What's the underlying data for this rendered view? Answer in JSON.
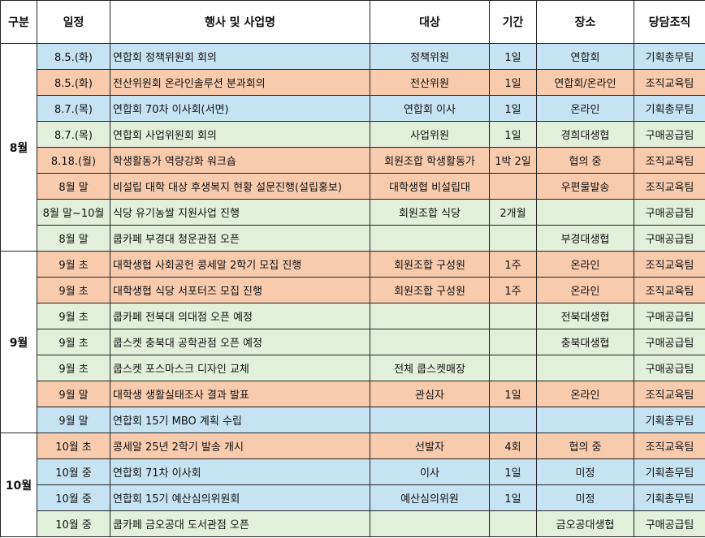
{
  "table": {
    "header": [
      "구분",
      "일정",
      "행사 및 사업명",
      "대상",
      "기간",
      "장소",
      "당담조직"
    ],
    "groups": [
      {
        "label": "8월",
        "rows": [
          {
            "color": "#c6e3f4",
            "cells": [
              "8.5.(화)",
              "연합회 정책위원회 회의",
              "정책위원",
              "1일",
              "연합회",
              "기획총무팀"
            ]
          },
          {
            "color": "#f8cbad",
            "cells": [
              "8.5.(화)",
              "전산위원회 온라인솔루션 분과회의",
              "전산위원",
              "1일",
              "연합회/온라인",
              "조직교육팀"
            ]
          },
          {
            "color": "#c6e3f4",
            "cells": [
              "8.7.(목)",
              "연합회 70차 이사회(서면)",
              "연합회 이사",
              "1일",
              "온라인",
              "기획총무팀"
            ]
          },
          {
            "color": "#e2efda",
            "cells": [
              "8.7.(목)",
              "연합회 사업위원회 회의",
              "사업위원",
              "1일",
              "경희대생협",
              "구매공급팀"
            ]
          },
          {
            "color": "#f8cbad",
            "cells": [
              "8.18.(월)",
              "학생활동가 역량강화 워크숍",
              "회원조합 학생활동가",
              "1박 2일",
              "협의 중",
              "조직교육팀"
            ]
          },
          {
            "color": "#f8cbad",
            "cells": [
              "8월 말",
              "비설립 대학 대상 후생복지 현황 설문진행(설립홍보)",
              "대학생협 비설립대",
              null,
              "우편물발송",
              "조직교육팀"
            ]
          },
          {
            "color": "#e2efda",
            "cells": [
              "8월 말~10월",
              "식당 유기농쌀 지원사업 진행",
              "회원조합 식당",
              "2개월",
              null,
              "구매공급팀"
            ]
          },
          {
            "color": "#e2efda",
            "cells": [
              "8월 말",
              "쿱카페 부경대 청운관점 오픈",
              null,
              null,
              "부경대생협",
              "구매공급팀"
            ]
          }
        ]
      },
      {
        "label": "9월",
        "rows": [
          {
            "color": "#f8cbad",
            "cells": [
              "9월 초",
              "대학생협 사회공헌 콩세알 2학기 모집 진행",
              "회원조합 구성원",
              "1주",
              "온라인",
              "조직교육팀"
            ]
          },
          {
            "color": "#f8cbad",
            "cells": [
              "9월 초",
              "대학생협 식당 서포터즈 모집 진행",
              "회원조합 구성원",
              "1주",
              "온라인",
              "조직교육팀"
            ]
          },
          {
            "color": "#e2efda",
            "cells": [
              "9월 초",
              "쿱카페 전북대 의대점 오픈 예정",
              null,
              null,
              "전북대생협",
              "구매공급팀"
            ]
          },
          {
            "color": "#e2efda",
            "cells": [
              "9월 초",
              "쿱스켓 충북대 공학관점 오픈 예정",
              null,
              null,
              "충북대생협",
              "구매공급팀"
            ]
          },
          {
            "color": "#e2efda",
            "cells": [
              "9월 초",
              "쿱스켓 포스마스크 디자인 교체",
              "전체 쿱스켓매장",
              null,
              null,
              "구매공급팀"
            ]
          },
          {
            "color": "#f8cbad",
            "cells": [
              "9월 말",
              "대학생 생활실태조사 결과 발표",
              "관심자",
              "1일",
              "온라인",
              "조직교육팀"
            ]
          },
          {
            "color": "#c6e3f4",
            "cells": [
              "9월 말",
              "연합회 15기 MBO 계획 수립",
              null,
              null,
              null,
              "기획총무팀"
            ]
          }
        ]
      },
      {
        "label": "10월",
        "rows": [
          {
            "color": "#f8cbad",
            "cells": [
              "10월 초",
              "콩세알 25년 2학기 발송 개시",
              "선발자",
              "4회",
              "협의 중",
              "조직교육팀"
            ]
          },
          {
            "color": "#c6e3f4",
            "cells": [
              "10월 중",
              "연합회 71차 이사회",
              "이사",
              "1일",
              "미정",
              "기획총무팀"
            ]
          },
          {
            "color": "#c6e3f4",
            "cells": [
              "10월 중",
              "연합회 15기 예산심의위원회",
              "예산심의위원",
              "1일",
              "미정",
              "기획총무팀"
            ]
          },
          {
            "color": "#e2efda",
            "cells": [
              "10월 중",
              "쿱카페 금오공대 도서관점 오픈",
              null,
              null,
              "금오공대생협",
              "구매공급팀"
            ]
          }
        ]
      }
    ]
  }
}
